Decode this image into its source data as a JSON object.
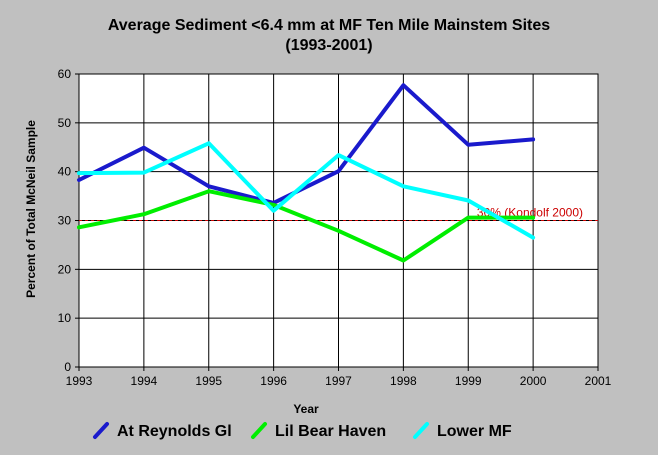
{
  "chart_data": {
    "type": "line",
    "title": "Average Sediment <6.4 mm at MF Ten Mile Mainstem Sites",
    "subtitle": "(1993-2001)",
    "xlabel": "Year",
    "ylabel": "Percent of Total McNeil Sample",
    "xlim": [
      1993,
      2001
    ],
    "ylim": [
      0,
      60
    ],
    "x_ticks": [
      "1993",
      "1994",
      "1995",
      "1996",
      "1997",
      "1998",
      "1999",
      "2000",
      "2001"
    ],
    "y_ticks": [
      "0",
      "10",
      "20",
      "30",
      "40",
      "50",
      "60"
    ],
    "grid": true,
    "legend_position": "bottom",
    "series": [
      {
        "name": "At Reynolds Gl",
        "color": "#1a1acc",
        "x": [
          1993,
          1994,
          1995,
          1996,
          1997,
          1998,
          1999,
          2000
        ],
        "values": [
          38.3,
          44.9,
          37.0,
          33.6,
          40.1,
          57.7,
          45.5,
          46.6
        ]
      },
      {
        "name": "Lil Bear Haven",
        "color": "#00ee00",
        "x": [
          1993,
          1994,
          1995,
          1996,
          1997,
          1998,
          1999,
          2000
        ],
        "values": [
          28.6,
          31.3,
          36.0,
          33.2,
          27.9,
          21.8,
          30.6,
          30.6
        ]
      },
      {
        "name": "Lower MF",
        "color": "#00ffff",
        "x": [
          1993,
          1994,
          1995,
          1996,
          1997,
          1998,
          1999,
          2000
        ],
        "values": [
          39.7,
          39.8,
          45.8,
          32.0,
          43.4,
          37.0,
          34.1,
          26.5
        ]
      }
    ],
    "reference_line": {
      "value": 30,
      "label": "30% (Kondolf 2000)",
      "color": "#cc0000"
    }
  }
}
